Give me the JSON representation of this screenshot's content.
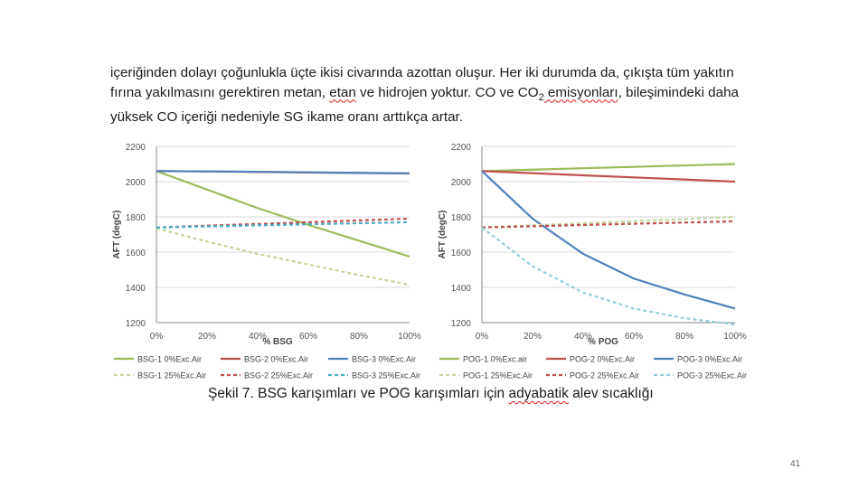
{
  "paragraph": {
    "line1": "içeriğinden dolayı çoğunlukla üçte ikisi civarında azottan oluşur. Her iki durumda da, çıkışta tüm yakıtın",
    "line2_a": "fırına yakılmasını gerektiren metan, ",
    "line2_etan": "etan",
    "line2_b": " ve hidrojen yoktur. CO ve CO",
    "line2_sub": "2",
    "line2_emis": " emisyonları",
    "line2_c": ", bileşimindeki daha",
    "line3": "yüksek CO içeriği nedeniyle SG ikame oranı arttıkça artar."
  },
  "chart_data": [
    {
      "type": "line",
      "ylabel": "AFT (degC)",
      "xlabel": "% BSG",
      "ylim": [
        1200,
        2200
      ],
      "y_ticks": [
        "1200",
        "1400",
        "1600",
        "1800",
        "2000",
        "2200"
      ],
      "x_ticks": [
        "0%",
        "20%",
        "40%",
        "60%",
        "80%",
        "100%"
      ],
      "x": [
        0,
        20,
        40,
        60,
        80,
        100
      ],
      "series": [
        {
          "name": "BSG-1 0%Exc.Air",
          "color": "#9bbb59",
          "dash": false,
          "values": [
            2060,
            1955,
            1850,
            1755,
            1665,
            1575
          ]
        },
        {
          "name": "BSG-2 0%Exc.Air",
          "color": "#c0504d",
          "dash": false,
          "values": [
            2060,
            2058,
            2055,
            2052,
            2049,
            2046
          ]
        },
        {
          "name": "BSG-3 0%Exc.Air",
          "color": "#4f81bd",
          "dash": false,
          "values": [
            2060,
            2058,
            2056,
            2053,
            2050,
            2047
          ]
        },
        {
          "name": "BSG-1 25%Exc.Air",
          "color": "#c3d69b",
          "dash": true,
          "values": [
            1735,
            1660,
            1590,
            1530,
            1470,
            1415
          ]
        },
        {
          "name": "BSG-2 25%Exc.Air",
          "color": "#c0504d",
          "dash": true,
          "values": [
            1740,
            1750,
            1760,
            1770,
            1780,
            1790
          ]
        },
        {
          "name": "BSG-3 25%Exc.Air",
          "color": "#4bacc6",
          "dash": true,
          "values": [
            1740,
            1746,
            1752,
            1758,
            1764,
            1770
          ]
        }
      ]
    },
    {
      "type": "line",
      "ylabel": "AFT (degC)",
      "xlabel": "% POG",
      "ylim": [
        1200,
        2200
      ],
      "y_ticks": [
        "1200",
        "1400",
        "1600",
        "1800",
        "2000",
        "2200"
      ],
      "x_ticks": [
        "0%",
        "20%",
        "40%",
        "60%",
        "80%",
        "100%"
      ],
      "x": [
        0,
        20,
        40,
        60,
        80,
        100
      ],
      "series": [
        {
          "name": "POG-1 0%Exc.air",
          "color": "#9bbb59",
          "dash": false,
          "values": [
            2060,
            2068,
            2076,
            2084,
            2092,
            2100
          ]
        },
        {
          "name": "POG-2 0%Exc.Air",
          "color": "#c0504d",
          "dash": false,
          "values": [
            2060,
            2048,
            2036,
            2024,
            2012,
            2000
          ]
        },
        {
          "name": "POG-3 0%Exc.Air",
          "color": "#4f81bd",
          "dash": false,
          "values": [
            2060,
            1790,
            1590,
            1450,
            1360,
            1280
          ]
        },
        {
          "name": "POG-1 25%Exc.Air",
          "color": "#c3d69b",
          "dash": true,
          "values": [
            1740,
            1752,
            1764,
            1776,
            1788,
            1800
          ]
        },
        {
          "name": "POG-2 25%Exc.Air",
          "color": "#c0504d",
          "dash": true,
          "values": [
            1740,
            1747,
            1754,
            1761,
            1768,
            1775
          ]
        },
        {
          "name": "POG-3 25%Exc.Air",
          "color": "#92cddc",
          "dash": true,
          "values": [
            1740,
            1520,
            1370,
            1280,
            1225,
            1190
          ]
        }
      ]
    }
  ],
  "caption": {
    "text_a": "Şekil 7. BSG karışımları ve POG karışımları için ",
    "adyabatik": "adyabatik",
    "text_b": " alev sıcaklığı"
  },
  "page_number": "41"
}
